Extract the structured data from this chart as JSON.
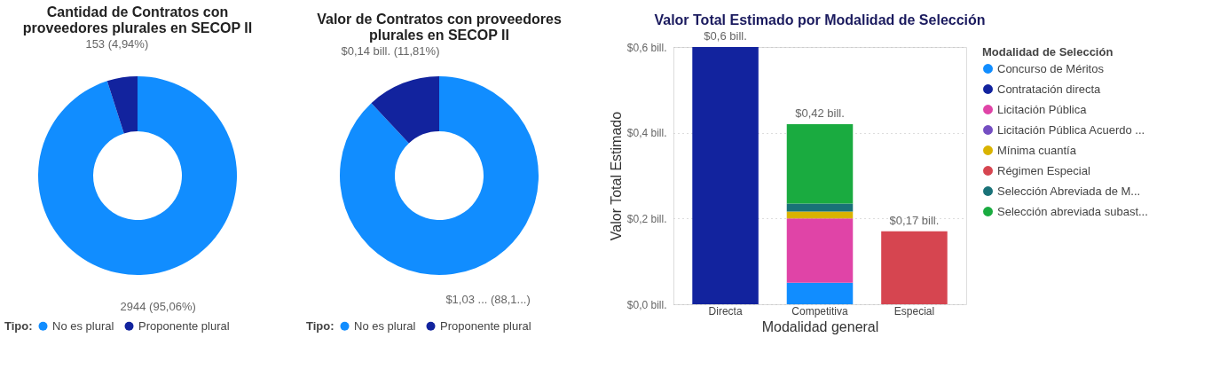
{
  "chart_data": [
    {
      "type": "donut",
      "title": "Cantidad de Contratos con proveedores plurales en SECOP II",
      "categories": [
        "No es plural",
        "Proponente plural"
      ],
      "values": [
        2944,
        153
      ],
      "colors": [
        "#118dff",
        "#12239e"
      ],
      "value_labels": [
        "2944 (95,06%)",
        "153 (4,94%)"
      ],
      "legend": "bottom",
      "legend_title": "Tipo:"
    },
    {
      "type": "donut",
      "title": "Valor de Contratos con proveedores plurales en SECOP II",
      "categories": [
        "No es plural",
        "Proponente plural"
      ],
      "values": [
        1.03,
        0.14
      ],
      "colors": [
        "#118dff",
        "#12239e"
      ],
      "value_labels": [
        "$1,03 ... (88,1...)",
        "$0,14 bill. (11,81%)"
      ],
      "legend": "bottom",
      "legend_title": "Tipo:"
    },
    {
      "type": "bar",
      "title": "Valor Total Estimado por Modalidad de Selección",
      "xlabel": "Modalidad general",
      "ylabel": "Valor Total Estimado",
      "legend_title": "Modalidad de Selección",
      "legend": "right",
      "stacked": true,
      "grid": "y",
      "categories": [
        "Directa",
        "Competitiva",
        "Especial"
      ],
      "ylim": [
        0,
        0.6
      ],
      "yticks": [
        {
          "value": 0,
          "label": "$0,0 bill."
        },
        {
          "value": 0.2,
          "label": "$0,2 bill."
        },
        {
          "value": 0.4,
          "label": "$0,4 bill."
        },
        {
          "value": 0.6,
          "label": "$0,6 bill."
        }
      ],
      "totals": [
        "$0,6 bill.",
        "$0,42 bill.",
        "$0,17 bill."
      ],
      "series": [
        {
          "name": "Concurso de Méritos",
          "color": "#118dff",
          "values": [
            null,
            0.05,
            null
          ]
        },
        {
          "name": "Contratación directa",
          "color": "#12239e",
          "values": [
            0.6,
            null,
            null
          ]
        },
        {
          "name": "Licitación Pública",
          "color": "#e044a7",
          "values": [
            null,
            0.15,
            null
          ]
        },
        {
          "name": "Licitación Pública Acuerdo ...",
          "color": "#744ec2",
          "values": [
            null,
            null,
            null
          ]
        },
        {
          "name": "Mínima cuantía",
          "color": "#d9b300",
          "values": [
            null,
            0.016,
            null
          ]
        },
        {
          "name": "Régimen Especial",
          "color": "#d64550",
          "values": [
            null,
            null,
            0.17
          ]
        },
        {
          "name": "Selección Abreviada de M...",
          "color": "#197278",
          "values": [
            null,
            0.019,
            null
          ]
        },
        {
          "name": "Selección abreviada subast...",
          "color": "#1aab40",
          "values": [
            null,
            0.185,
            null
          ]
        }
      ]
    }
  ]
}
